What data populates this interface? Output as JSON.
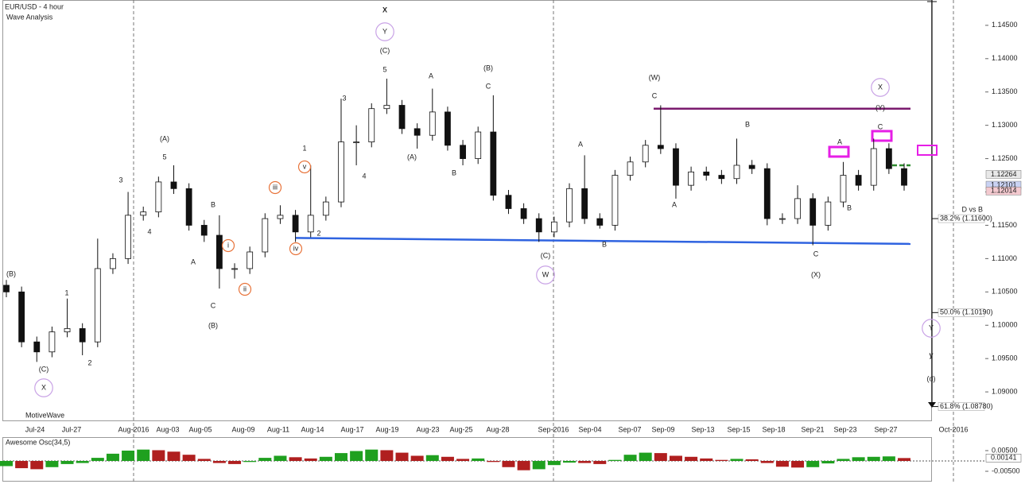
{
  "chart_data": {
    "type": "candlestick",
    "title": "EUR/USD - 4 hour",
    "subtitle": "Wave Analysis",
    "footer": "MotiveWave",
    "ylim": [
      1.0856,
      1.1488
    ],
    "yticks": [
      {
        "value": 1.145,
        "label": "1.14500"
      },
      {
        "value": 1.14,
        "label": "1.14000"
      },
      {
        "value": 1.135,
        "label": "1.13500"
      },
      {
        "value": 1.13,
        "label": "1.13000"
      },
      {
        "value": 1.125,
        "label": "1.12500"
      },
      {
        "value": 1.12,
        "label": "1.12000"
      },
      {
        "value": 1.115,
        "label": "1.11500"
      },
      {
        "value": 1.11,
        "label": "1.11000"
      },
      {
        "value": 1.105,
        "label": "1.10500"
      },
      {
        "value": 1.1,
        "label": "1.10000"
      },
      {
        "value": 1.095,
        "label": "1.09500"
      },
      {
        "value": 1.09,
        "label": "1.09000"
      }
    ],
    "x_tick_labels": [
      "Jul-24",
      "Jul-27",
      "Aug-2016",
      "Aug-03",
      "Aug-05",
      "Aug-09",
      "Aug-11",
      "Aug-14",
      "Aug-17",
      "Aug-19",
      "Aug-23",
      "Aug-25",
      "Aug-28",
      "Sep-2016",
      "Sep-04",
      "Sep-07",
      "Sep-09",
      "Sep-13",
      "Sep-15",
      "Sep-18",
      "Sep-21",
      "Sep-23",
      "Sep-27",
      "Oct-2016"
    ],
    "ohlc": [
      [
        1.106,
        1.1068,
        1.1042,
        1.105
      ],
      [
        1.105,
        1.1058,
        1.0967,
        1.0975
      ],
      [
        1.0975,
        1.0983,
        1.0945,
        1.096
      ],
      [
        1.096,
        1.0998,
        1.0952,
        1.099
      ],
      [
        1.099,
        1.104,
        1.0982,
        1.0995
      ],
      [
        1.0995,
        1.1003,
        1.0955,
        1.0975
      ],
      [
        1.0975,
        1.113,
        1.0967,
        1.1085
      ],
      [
        1.1085,
        1.1108,
        1.1077,
        1.11
      ],
      [
        1.11,
        1.12,
        1.1092,
        1.1165
      ],
      [
        1.1165,
        1.1178,
        1.1157,
        1.117
      ],
      [
        1.117,
        1.1223,
        1.1162,
        1.1215
      ],
      [
        1.1215,
        1.124,
        1.1197,
        1.1205
      ],
      [
        1.1205,
        1.1213,
        1.1142,
        1.115
      ],
      [
        1.115,
        1.1158,
        1.1125,
        1.1135
      ],
      [
        1.1135,
        1.1165,
        1.1055,
        1.1085
      ],
      [
        1.1085,
        1.1093,
        1.107,
        1.1085
      ],
      [
        1.1085,
        1.1118,
        1.1077,
        1.111
      ],
      [
        1.111,
        1.1168,
        1.1102,
        1.116
      ],
      [
        1.116,
        1.118,
        1.1152,
        1.1165
      ],
      [
        1.1165,
        1.1173,
        1.1125,
        1.114
      ],
      [
        1.114,
        1.124,
        1.1132,
        1.1165
      ],
      [
        1.1165,
        1.1193,
        1.1157,
        1.1185
      ],
      [
        1.1185,
        1.134,
        1.1177,
        1.1275
      ],
      [
        1.1275,
        1.13,
        1.124,
        1.1275
      ],
      [
        1.1275,
        1.1333,
        1.1267,
        1.1325
      ],
      [
        1.1325,
        1.137,
        1.1317,
        1.133
      ],
      [
        1.133,
        1.1338,
        1.1287,
        1.1295
      ],
      [
        1.1295,
        1.1303,
        1.1265,
        1.1285
      ],
      [
        1.1285,
        1.1355,
        1.1277,
        1.132
      ],
      [
        1.132,
        1.1328,
        1.1262,
        1.127
      ],
      [
        1.127,
        1.1278,
        1.124,
        1.125
      ],
      [
        1.125,
        1.1298,
        1.1242,
        1.129
      ],
      [
        1.129,
        1.1345,
        1.1187,
        1.1195
      ],
      [
        1.1195,
        1.1203,
        1.1167,
        1.1175
      ],
      [
        1.1175,
        1.1183,
        1.1152,
        1.116
      ],
      [
        1.116,
        1.1168,
        1.1125,
        1.114
      ],
      [
        1.114,
        1.1163,
        1.1132,
        1.1155
      ],
      [
        1.1155,
        1.1213,
        1.1147,
        1.1205
      ],
      [
        1.1205,
        1.1255,
        1.1152,
        1.116
      ],
      [
        1.116,
        1.1168,
        1.1145,
        1.115
      ],
      [
        1.115,
        1.1233,
        1.1142,
        1.1225
      ],
      [
        1.1225,
        1.1253,
        1.1217,
        1.1245
      ],
      [
        1.1245,
        1.1278,
        1.1237,
        1.127
      ],
      [
        1.127,
        1.133,
        1.1257,
        1.1265
      ],
      [
        1.1265,
        1.1273,
        1.119,
        1.121
      ],
      [
        1.121,
        1.1238,
        1.1202,
        1.123
      ],
      [
        1.123,
        1.1238,
        1.1217,
        1.1225
      ],
      [
        1.1225,
        1.1233,
        1.1212,
        1.122
      ],
      [
        1.122,
        1.128,
        1.1212,
        1.124
      ],
      [
        1.124,
        1.1248,
        1.1227,
        1.1235
      ],
      [
        1.1235,
        1.1243,
        1.115,
        1.116
      ],
      [
        1.116,
        1.1168,
        1.1152,
        1.116
      ],
      [
        1.116,
        1.121,
        1.1152,
        1.119
      ],
      [
        1.119,
        1.1198,
        1.112,
        1.115
      ],
      [
        1.115,
        1.1193,
        1.1142,
        1.1185
      ],
      [
        1.1185,
        1.1245,
        1.1177,
        1.1225
      ],
      [
        1.1225,
        1.1233,
        1.1202,
        1.121
      ],
      [
        1.121,
        1.128,
        1.1202,
        1.1265
      ],
      [
        1.1265,
        1.1273,
        1.1227,
        1.1235
      ],
      [
        1.1235,
        1.1243,
        1.1202,
        1.121
      ]
    ],
    "lines": [
      {
        "color": "#7a1a6e",
        "values": [
          1.1325,
          1.1325
        ]
      },
      {
        "color": "#2f63e0",
        "values": [
          1.1131,
          1.1122
        ]
      },
      {
        "color": "#2e8b2e",
        "values": [
          1.124,
          1.124
        ],
        "style": "dashed"
      }
    ],
    "price_tags": [
      {
        "value": 1.12264,
        "label": "1.12264",
        "color": "#e8e8e8"
      },
      {
        "value": 1.12101,
        "label": "1.12101",
        "color": "#c9d2f3"
      },
      {
        "value": 1.12014,
        "label": "1.12014",
        "color": "#f3c9cf"
      }
    ],
    "fib_title": "D vs B",
    "fib_levels": [
      {
        "value": 1.116,
        "label": "38.2% (1.11600)"
      },
      {
        "value": 1.1019,
        "label": "50.0% (1.10190)"
      },
      {
        "value": 1.0878,
        "label": "61.8% (1.08780)"
      }
    ],
    "wave_labels": [
      {
        "text": "X",
        "color": "#8b2500"
      },
      {
        "text": "Y",
        "color": "#c9a3e6",
        "circled": true
      },
      {
        "text": "(C)",
        "color": "#2fb6e6"
      },
      {
        "text": "5",
        "color": "#8db81e"
      },
      {
        "text": "3",
        "color": "#8db81e"
      },
      {
        "text": "4",
        "color": "#8db81e"
      },
      {
        "text": "(A)",
        "color": "#2fb6e6"
      },
      {
        "text": "A",
        "color": "#8db81e"
      },
      {
        "text": "B",
        "color": "#8db81e"
      },
      {
        "text": "(B)",
        "color": "#2fb6e6"
      },
      {
        "text": "C",
        "color": "#8db81e"
      },
      {
        "text": "(C)",
        "color": "#2fb6e6"
      },
      {
        "text": "W",
        "color": "#c9a3e6",
        "circled": true
      },
      {
        "text": "A",
        "color": "#8db81e"
      },
      {
        "text": "B",
        "color": "#8db81e"
      },
      {
        "text": "(W)",
        "color": "#2fb6e6"
      },
      {
        "text": "C",
        "color": "#8db81e"
      },
      {
        "text": "A",
        "color": "#8db81e"
      },
      {
        "text": "B",
        "color": "#8db81e"
      },
      {
        "text": "C",
        "color": "#8db81e"
      },
      {
        "text": "(X)",
        "color": "#2fb6e6"
      },
      {
        "text": "A",
        "color": "#8db81e"
      },
      {
        "text": "B",
        "color": "#8db81e"
      },
      {
        "text": "X",
        "color": "#c9a3e6",
        "circled": true
      },
      {
        "text": "(Y)",
        "color": "#2fb6e6"
      },
      {
        "text": "C",
        "color": "#8db81e"
      },
      {
        "text": "Y",
        "color": "#c9a3e6",
        "circled": true
      },
      {
        "text": "y",
        "color": "#8b2500"
      },
      {
        "text": "(d)",
        "color": "#1f7a1f"
      },
      {
        "text": "(B)",
        "color": "#2fb6e6"
      },
      {
        "text": "(C)",
        "color": "#2fb6e6"
      },
      {
        "text": "X",
        "color": "#c9a3e6",
        "circled": true
      },
      {
        "text": "1",
        "color": "#8db81e"
      },
      {
        "text": "2",
        "color": "#8db81e"
      },
      {
        "text": "3",
        "color": "#8db81e"
      },
      {
        "text": "4",
        "color": "#8db81e"
      },
      {
        "text": "(A)",
        "color": "#2fb6e6"
      },
      {
        "text": "5",
        "color": "#8db81e"
      },
      {
        "text": "A",
        "color": "#8db81e"
      },
      {
        "text": "B",
        "color": "#8db81e"
      },
      {
        "text": "C",
        "color": "#8db81e"
      },
      {
        "text": "(B)",
        "color": "#2fb6e6"
      },
      {
        "text": "i",
        "color": "#e8743b",
        "circled": true
      },
      {
        "text": "ii",
        "color": "#e8743b",
        "circled": true
      },
      {
        "text": "iii",
        "color": "#e8743b",
        "circled": true
      },
      {
        "text": "iv",
        "color": "#e8743b",
        "circled": true
      },
      {
        "text": "v",
        "color": "#e8743b",
        "circled": true
      },
      {
        "text": "1",
        "color": "#8db81e"
      },
      {
        "text": "2",
        "color": "#8db81e"
      }
    ],
    "oscillator": {
      "title": "Awesome Osc(34,5)",
      "ylim": [
        -0.00885,
        0.01115
      ],
      "yticks": [
        {
          "value": 0.005,
          "label": "0.00500"
        },
        {
          "value": -0.005,
          "label": "-0.00500"
        }
      ],
      "current": {
        "value": 0.00141,
        "label": "0.00141"
      },
      "values": [
        -0.0025,
        -0.0035,
        -0.004,
        -0.003,
        -0.0015,
        -0.001,
        0.0015,
        0.0035,
        0.005,
        0.0055,
        0.0052,
        0.0045,
        0.003,
        0.001,
        -0.001,
        -0.0015,
        -0.0005,
        0.0015,
        0.0025,
        0.0018,
        0.0012,
        0.002,
        0.0038,
        0.0048,
        0.0055,
        0.0052,
        0.004,
        0.0025,
        0.0028,
        0.002,
        0.001,
        0.0012,
        -0.0005,
        -0.003,
        -0.0045,
        -0.004,
        -0.002,
        -0.0008,
        -0.001,
        -0.0015,
        0.0005,
        0.003,
        0.004,
        0.0038,
        0.0025,
        0.002,
        0.0012,
        0.0005,
        0.001,
        0.0008,
        -0.001,
        -0.0028,
        -0.0032,
        -0.003,
        -0.0012,
        0.001,
        0.0018,
        0.002,
        0.0022,
        0.0014
      ]
    }
  }
}
